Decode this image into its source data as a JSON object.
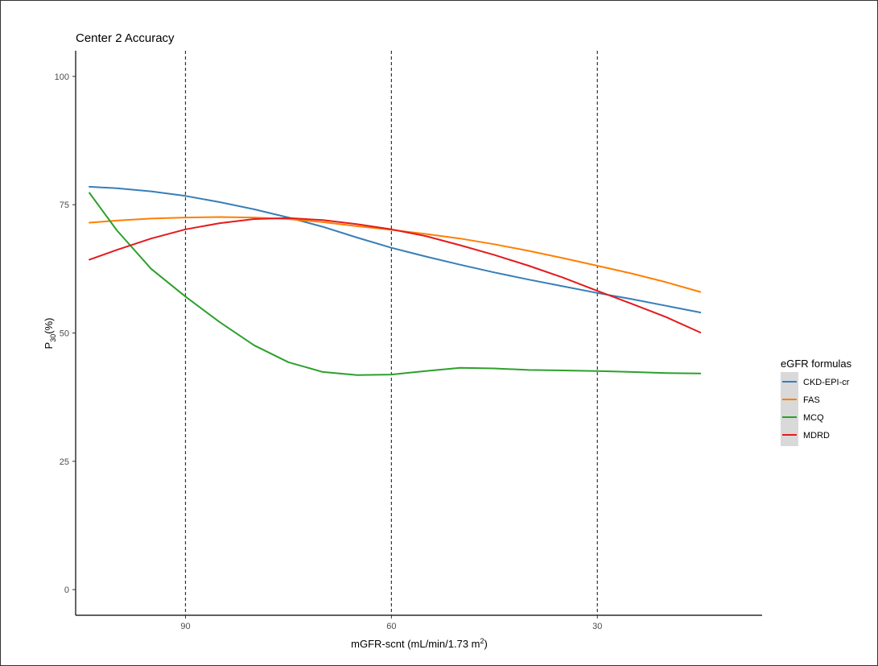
{
  "chart_data": {
    "type": "line",
    "title": "Center 2 Accuracy",
    "xlabel": {
      "main": "mGFR-scnt (mL/min/1.73 m",
      "sup": "2",
      "tail": ")"
    },
    "ylabel": {
      "main": "P",
      "sub": "30",
      "tail": "(%)"
    },
    "xlim": [
      106,
      6
    ],
    "ylim": [
      -5,
      105
    ],
    "x_ticks": [
      90,
      60,
      30
    ],
    "y_ticks": [
      0,
      25,
      50,
      75,
      100
    ],
    "vlines": [
      90,
      60,
      30
    ],
    "grid": false,
    "legend": {
      "title": "eGFR formulas",
      "position": "right"
    },
    "series": [
      {
        "name": "CKD-EPI-cr",
        "color": "#377eb8",
        "x": [
          104,
          100,
          95,
          90,
          85,
          80,
          75,
          70,
          65,
          60,
          55,
          50,
          45,
          40,
          35,
          30,
          25,
          20,
          15
        ],
        "y": [
          78.5,
          78.2,
          77.6,
          76.7,
          75.5,
          74.1,
          72.5,
          70.7,
          68.6,
          66.6,
          64.9,
          63.3,
          61.8,
          60.4,
          59.1,
          57.8,
          56.6,
          55.3,
          54.0
        ]
      },
      {
        "name": "FAS",
        "color": "#ff7f00",
        "x": [
          104,
          100,
          95,
          90,
          85,
          80,
          75,
          70,
          65,
          60,
          55,
          50,
          45,
          40,
          35,
          30,
          25,
          20,
          15
        ],
        "y": [
          71.5,
          71.9,
          72.3,
          72.5,
          72.6,
          72.5,
          72.2,
          71.6,
          70.8,
          70.1,
          69.3,
          68.4,
          67.3,
          66.0,
          64.6,
          63.1,
          61.6,
          59.9,
          58.0
        ]
      },
      {
        "name": "MCQ",
        "color": "#2ca02c",
        "x": [
          104,
          100,
          95,
          90,
          85,
          80,
          75,
          70,
          65,
          60,
          55,
          50,
          45,
          40,
          35,
          30,
          25,
          20,
          15
        ],
        "y": [
          77.3,
          70.0,
          62.5,
          57.1,
          52.1,
          47.6,
          44.3,
          42.4,
          41.8,
          41.9,
          42.6,
          43.2,
          43.1,
          42.8,
          42.7,
          42.6,
          42.4,
          42.2,
          42.1
        ]
      },
      {
        "name": "MDRD",
        "color": "#e41a1c",
        "x": [
          104,
          100,
          95,
          90,
          85,
          80,
          75,
          70,
          65,
          60,
          55,
          50,
          45,
          40,
          35,
          30,
          25,
          20,
          15
        ],
        "y": [
          64.3,
          66.2,
          68.4,
          70.2,
          71.4,
          72.2,
          72.4,
          72.0,
          71.2,
          70.2,
          68.9,
          67.1,
          65.2,
          63.1,
          60.8,
          58.2,
          55.7,
          53.1,
          50.1
        ]
      }
    ]
  }
}
